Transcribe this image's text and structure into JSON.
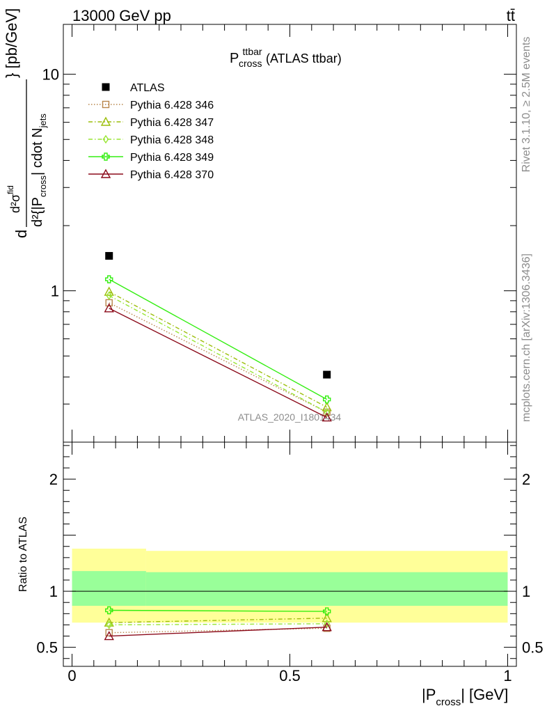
{
  "header": {
    "left": "13000 GeV pp",
    "right": "tt̄"
  },
  "side": {
    "rivet": "Rivet 3.1.10, ≥ 2.5M events",
    "mcplots": "mcplots.cern.ch [arXiv:1306.3436]"
  },
  "plot_title": {
    "main": "P",
    "sup": "ttbar",
    "sub": "cross",
    "suffix": " (ATLAS ttbar)"
  },
  "watermark": "ATLAS_2020_I1801434",
  "ylabel_main": {
    "d": "d",
    "num": "d²σ",
    "num_sup": "fid",
    "den": "d²{|P",
    "den_sub": "cross",
    "den_mid": "| cdot N",
    "den_sub2": "jets",
    "unit": "} [pb/GeV]"
  },
  "ylabel_ratio": "Ratio to ATLAS",
  "xlabel": {
    "pre": "|P",
    "sub": "cross",
    "post": "| [GeV]"
  },
  "colors": {
    "atlas": "#000000",
    "p346": "#b8864b",
    "p347": "#9cbe0b",
    "p348": "#99e634",
    "p349": "#33ee11",
    "p370": "#8b0a1a",
    "band_inner": "#99ff99",
    "band_outer": "#ffff99"
  },
  "chart_data": [
    {
      "type": "scatter",
      "panel": "main",
      "yscale": "log",
      "ylim": [
        0.2,
        17
      ],
      "xlim": [
        -0.02,
        1.02
      ],
      "yticks_major": [
        1,
        10
      ],
      "series": [
        {
          "name": "ATLAS",
          "x": [
            0.085,
            0.585
          ],
          "y": [
            1.45,
            0.41
          ],
          "marker": "square-filled",
          "line": "none",
          "color": "#000000"
        },
        {
          "name": "Pythia 6.428 346",
          "x": [
            0.085,
            0.585
          ],
          "y": [
            0.88,
            0.275
          ],
          "marker": "square-open",
          "line": "dotted",
          "color": "#b8864b"
        },
        {
          "name": "Pythia 6.428 347",
          "x": [
            0.085,
            0.585
          ],
          "y": [
            0.99,
            0.29
          ],
          "marker": "triangle-open",
          "line": "dashdot",
          "color": "#9cbe0b"
        },
        {
          "name": "Pythia 6.428 348",
          "x": [
            0.085,
            0.585
          ],
          "y": [
            0.95,
            0.275
          ],
          "marker": "diamond-open",
          "line": "dashdot",
          "color": "#99e634"
        },
        {
          "name": "Pythia 6.428 349",
          "x": [
            0.085,
            0.585
          ],
          "y": [
            1.13,
            0.315
          ],
          "marker": "cross-open",
          "line": "solid",
          "color": "#33ee11"
        },
        {
          "name": "Pythia 6.428 370",
          "x": [
            0.085,
            0.585
          ],
          "y": [
            0.83,
            0.26
          ],
          "marker": "triangle-open",
          "line": "solid",
          "color": "#8b0a1a"
        }
      ]
    },
    {
      "type": "line",
      "panel": "ratio",
      "ylim": [
        0.33,
        2.33
      ],
      "xlim": [
        -0.02,
        1.02
      ],
      "yticks_major": [
        0.5,
        1,
        2
      ],
      "xticks_major": [
        0,
        0.5,
        1
      ],
      "xtick_labels": [
        "0",
        "0.5",
        "1"
      ],
      "bands": [
        {
          "x": [
            0,
            0.17
          ],
          "inner": [
            0.87,
            1.18
          ],
          "outer": [
            0.72,
            1.38
          ]
        },
        {
          "x": [
            0.17,
            1.0
          ],
          "inner": [
            0.87,
            1.17
          ],
          "outer": [
            0.72,
            1.36
          ]
        }
      ],
      "series": [
        {
          "name": "Pythia 6.428 346",
          "x": [
            0.085,
            0.585
          ],
          "y": [
            0.63,
            0.67
          ],
          "marker": "square-open",
          "line": "dotted",
          "color": "#b8864b"
        },
        {
          "name": "Pythia 6.428 347",
          "x": [
            0.085,
            0.585
          ],
          "y": [
            0.72,
            0.76
          ],
          "marker": "triangle-open",
          "line": "dashdot",
          "color": "#9cbe0b"
        },
        {
          "name": "Pythia 6.428 348",
          "x": [
            0.085,
            0.585
          ],
          "y": [
            0.7,
            0.71
          ],
          "marker": "diamond-open",
          "line": "dashdot",
          "color": "#99e634"
        },
        {
          "name": "Pythia 6.428 349",
          "x": [
            0.085,
            0.585
          ],
          "y": [
            0.83,
            0.82
          ],
          "marker": "cross-open",
          "line": "solid",
          "color": "#33ee11"
        },
        {
          "name": "Pythia 6.428 370",
          "x": [
            0.085,
            0.585
          ],
          "y": [
            0.6,
            0.68
          ],
          "marker": "triangle-open",
          "line": "solid",
          "color": "#8b0a1a"
        }
      ]
    }
  ]
}
